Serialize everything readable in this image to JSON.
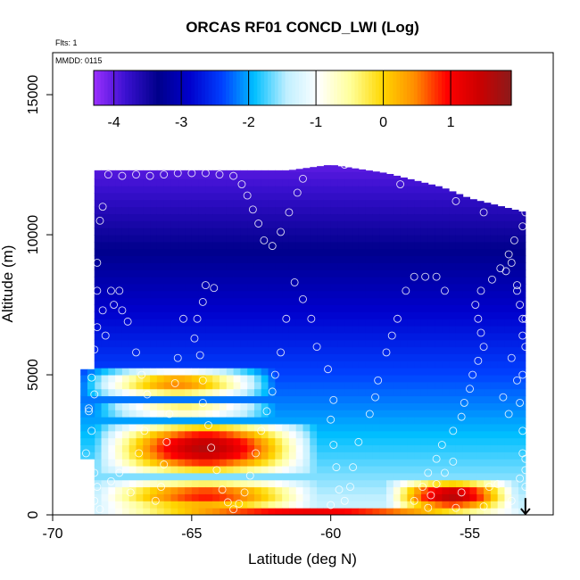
{
  "header": {
    "title": "ORCAS RF01 CONCD_LWI (Log)",
    "flts": "Flts: 1",
    "mmdd": "MMDD: 0115"
  },
  "chart_data": {
    "type": "heatmap",
    "title": "ORCAS RF01 CONCD_LWI (Log)",
    "xlabel": "Latitude (deg N)",
    "ylabel": "Altitude (m)",
    "xlim": [
      -70,
      -52
    ],
    "ylim": [
      0,
      16500
    ],
    "x_ticks": [
      -70,
      -65,
      -60,
      -55
    ],
    "x_tick_labels": [
      "-70",
      "-65",
      "-60",
      "-55"
    ],
    "y_ticks": [
      0,
      5000,
      10000,
      15000
    ],
    "y_tick_labels": [
      "0",
      "5000",
      "10000",
      "15000"
    ],
    "colorbar": {
      "range": [
        -4.3,
        1.9
      ],
      "ticks": [
        -4,
        -3,
        -2,
        -1,
        0,
        1
      ],
      "tick_labels": [
        "-4",
        "-3",
        "-2",
        "-1",
        "0",
        "1"
      ],
      "placement": "top",
      "colors": [
        "#9b30ff",
        "#3a10d0",
        "#00008b",
        "#0000cd",
        "#0040ff",
        "#00bfff",
        "#bfefff",
        "#ffffff",
        "#ffff99",
        "#ffd700",
        "#ff8c00",
        "#ff0000",
        "#cc0000",
        "#8b1a1a"
      ]
    },
    "coverage": [
      {
        "lat_min": -68.5,
        "lat_max": -53.0,
        "alt_min": 0,
        "alt_max": 12300
      },
      {
        "lat_min": -69.0,
        "lat_max": -68.5,
        "alt_min": 2000,
        "alt_max": 5200
      }
    ],
    "top_edge": [
      {
        "lat": -68.5,
        "alt": 12300
      },
      {
        "lat": -61.5,
        "alt": 12300
      },
      {
        "lat": -60.0,
        "alt": 12500
      },
      {
        "lat": -58.0,
        "alt": 12200
      },
      {
        "lat": -56.0,
        "alt": 11700
      },
      {
        "lat": -55.0,
        "alt": 11300
      },
      {
        "lat": -53.0,
        "alt": 10800
      }
    ],
    "high_value_layers": [
      {
        "name": "layer-4800",
        "lat_min": -69.0,
        "lat_max": -62.0,
        "alt_min": 4200,
        "alt_max": 5200,
        "peak": 0.5
      },
      {
        "name": "layer-3500",
        "lat_min": -68.5,
        "lat_max": -62.0,
        "alt_min": 3500,
        "alt_max": 4100,
        "peak": -0.3
      },
      {
        "name": "core-2400",
        "lat_min": -68.5,
        "lat_max": -60.5,
        "alt_min": 1500,
        "alt_max": 3300,
        "peak": 1.6
      },
      {
        "name": "low-600",
        "lat_min": -68.5,
        "lat_max": -60.5,
        "alt_min": 200,
        "alt_max": 1200,
        "peak": 0.9
      },
      {
        "name": "south-600",
        "lat_min": -58.0,
        "lat_max": -53.3,
        "alt_min": 200,
        "alt_max": 1200,
        "peak": 1.6
      },
      {
        "name": "surface",
        "lat_min": -68.5,
        "lat_max": -53.0,
        "alt_min": 0,
        "alt_max": 200,
        "peak": 1.2
      }
    ],
    "flight_track": [
      {
        "lat": -68.0,
        "alt": 12150
      },
      {
        "lat": -67.5,
        "alt": 12100
      },
      {
        "lat": -67.0,
        "alt": 12150
      },
      {
        "lat": -66.5,
        "alt": 12100
      },
      {
        "lat": -66.0,
        "alt": 12150
      },
      {
        "lat": -65.5,
        "alt": 12200
      },
      {
        "lat": -65.0,
        "alt": 12200
      },
      {
        "lat": -64.5,
        "alt": 12200
      },
      {
        "lat": -64.0,
        "alt": 12150
      },
      {
        "lat": -63.5,
        "alt": 12100
      },
      {
        "lat": -63.2,
        "alt": 11800
      },
      {
        "lat": -63.0,
        "alt": 11400
      },
      {
        "lat": -62.8,
        "alt": 10900
      },
      {
        "lat": -62.6,
        "alt": 10400
      },
      {
        "lat": -62.4,
        "alt": 9800
      },
      {
        "lat": -62.1,
        "alt": 9600
      },
      {
        "lat": -61.8,
        "alt": 10100
      },
      {
        "lat": -61.5,
        "alt": 10800
      },
      {
        "lat": -61.2,
        "alt": 11500
      },
      {
        "lat": -61.0,
        "alt": 12000
      },
      {
        "lat": -59.5,
        "alt": 12500
      },
      {
        "lat": -57.5,
        "alt": 11800
      },
      {
        "lat": -55.5,
        "alt": 11200
      },
      {
        "lat": -54.5,
        "alt": 10800
      },
      {
        "lat": -53.0,
        "alt": 10800
      },
      {
        "lat": -53.1,
        "alt": 10300
      },
      {
        "lat": -53.4,
        "alt": 9800
      },
      {
        "lat": -53.6,
        "alt": 9300
      },
      {
        "lat": -53.9,
        "alt": 8800
      },
      {
        "lat": -54.2,
        "alt": 8400
      },
      {
        "lat": -54.6,
        "alt": 8000
      },
      {
        "lat": -54.8,
        "alt": 7500
      },
      {
        "lat": -54.7,
        "alt": 7000
      },
      {
        "lat": -54.6,
        "alt": 6500
      },
      {
        "lat": -54.5,
        "alt": 6000
      },
      {
        "lat": -54.7,
        "alt": 5500
      },
      {
        "lat": -54.9,
        "alt": 5000
      },
      {
        "lat": -55.0,
        "alt": 4500
      },
      {
        "lat": -55.2,
        "alt": 4000
      },
      {
        "lat": -55.3,
        "alt": 3500
      },
      {
        "lat": -55.6,
        "alt": 3000
      },
      {
        "lat": -56.0,
        "alt": 2500
      },
      {
        "lat": -56.2,
        "alt": 2000
      },
      {
        "lat": -56.5,
        "alt": 1500
      },
      {
        "lat": -56.7,
        "alt": 1000
      },
      {
        "lat": -57.0,
        "alt": 500
      },
      {
        "lat": -56.5,
        "alt": 250
      },
      {
        "lat": -55.5,
        "alt": 250
      },
      {
        "lat": -54.5,
        "alt": 300
      },
      {
        "lat": -53.5,
        "alt": 500
      },
      {
        "lat": -53.0,
        "alt": 1000
      },
      {
        "lat": -53.0,
        "alt": 2000
      },
      {
        "lat": -53.1,
        "alt": 3000
      },
      {
        "lat": -53.2,
        "alt": 4000
      },
      {
        "lat": -53.1,
        "alt": 5000
      },
      {
        "lat": -53.0,
        "alt": 6000
      },
      {
        "lat": -53.1,
        "alt": 7000
      },
      {
        "lat": -53.2,
        "alt": 7500
      },
      {
        "lat": -53.3,
        "alt": 8000
      },
      {
        "lat": -57.0,
        "alt": 8500
      },
      {
        "lat": -56.6,
        "alt": 8500
      },
      {
        "lat": -56.2,
        "alt": 8500
      },
      {
        "lat": -55.9,
        "alt": 8000
      },
      {
        "lat": -57.3,
        "alt": 8000
      },
      {
        "lat": -57.6,
        "alt": 7000
      },
      {
        "lat": -57.8,
        "alt": 6400
      },
      {
        "lat": -58.0,
        "alt": 5800
      },
      {
        "lat": -58.3,
        "alt": 4800
      },
      {
        "lat": -58.4,
        "alt": 4200
      },
      {
        "lat": -58.6,
        "alt": 3600
      },
      {
        "lat": -59.0,
        "alt": 2600
      },
      {
        "lat": -59.2,
        "alt": 1700
      },
      {
        "lat": -59.3,
        "alt": 1000
      },
      {
        "lat": -59.5,
        "alt": 500
      },
      {
        "lat": -60.0,
        "alt": 350
      },
      {
        "lat": -59.7,
        "alt": 900
      },
      {
        "lat": -59.8,
        "alt": 1700
      },
      {
        "lat": -59.9,
        "alt": 2500
      },
      {
        "lat": -60.0,
        "alt": 3400
      },
      {
        "lat": -59.9,
        "alt": 4100
      },
      {
        "lat": -60.1,
        "alt": 5200
      },
      {
        "lat": -60.5,
        "alt": 6000
      },
      {
        "lat": -60.7,
        "alt": 7000
      },
      {
        "lat": -61.0,
        "alt": 7700
      },
      {
        "lat": -61.3,
        "alt": 8300
      },
      {
        "lat": -61.6,
        "alt": 7000
      },
      {
        "lat": -61.8,
        "alt": 5800
      },
      {
        "lat": -62.0,
        "alt": 5000
      },
      {
        "lat": -62.1,
        "alt": 4400
      },
      {
        "lat": -62.3,
        "alt": 3700
      },
      {
        "lat": -62.5,
        "alt": 3000
      },
      {
        "lat": -62.7,
        "alt": 2200
      },
      {
        "lat": -62.9,
        "alt": 1400
      },
      {
        "lat": -63.1,
        "alt": 800
      },
      {
        "lat": -63.3,
        "alt": 400
      },
      {
        "lat": -63.5,
        "alt": 200
      },
      {
        "lat": -63.7,
        "alt": 450
      },
      {
        "lat": -63.9,
        "alt": 900
      },
      {
        "lat": -64.1,
        "alt": 1600
      },
      {
        "lat": -64.3,
        "alt": 2400
      },
      {
        "lat": -64.4,
        "alt": 3200
      },
      {
        "lat": -64.6,
        "alt": 4000
      },
      {
        "lat": -64.6,
        "alt": 4800
      },
      {
        "lat": -64.7,
        "alt": 5700
      },
      {
        "lat": -64.9,
        "alt": 6300
      },
      {
        "lat": -64.8,
        "alt": 7000
      },
      {
        "lat": -64.6,
        "alt": 7600
      },
      {
        "lat": -64.5,
        "alt": 8200
      },
      {
        "lat": -64.2,
        "alt": 8100
      },
      {
        "lat": -65.3,
        "alt": 7000
      },
      {
        "lat": -65.5,
        "alt": 5600
      },
      {
        "lat": -65.6,
        "alt": 4700
      },
      {
        "lat": -65.8,
        "alt": 3600
      },
      {
        "lat": -65.9,
        "alt": 2600
      },
      {
        "lat": -66.0,
        "alt": 1800
      },
      {
        "lat": -66.1,
        "alt": 1000
      },
      {
        "lat": -66.3,
        "alt": 500
      },
      {
        "lat": -66.6,
        "alt": 4300
      },
      {
        "lat": -66.8,
        "alt": 5000
      },
      {
        "lat": -67.0,
        "alt": 5800
      },
      {
        "lat": -67.3,
        "alt": 6900
      },
      {
        "lat": -67.5,
        "alt": 7300
      },
      {
        "lat": -67.8,
        "alt": 7500
      },
      {
        "lat": -67.9,
        "alt": 8000
      },
      {
        "lat": -67.6,
        "alt": 8000
      },
      {
        "lat": -68.1,
        "alt": 6400
      },
      {
        "lat": -68.5,
        "alt": 5900
      },
      {
        "lat": -68.4,
        "alt": 6700
      },
      {
        "lat": -68.2,
        "alt": 7300
      },
      {
        "lat": -68.4,
        "alt": 8000
      },
      {
        "lat": -68.4,
        "alt": 9000
      },
      {
        "lat": -68.2,
        "alt": 11000
      },
      {
        "lat": -68.3,
        "alt": 10500
      },
      {
        "lat": -68.6,
        "alt": 4900
      },
      {
        "lat": -68.5,
        "alt": 4300
      },
      {
        "lat": -68.7,
        "alt": 3800
      },
      {
        "lat": -68.6,
        "alt": 3000
      },
      {
        "lat": -68.8,
        "alt": 2200
      },
      {
        "lat": -68.5,
        "alt": 1500
      },
      {
        "lat": -68.4,
        "alt": 1000
      },
      {
        "lat": -68.5,
        "alt": 500
      },
      {
        "lat": -68.3,
        "alt": 200
      },
      {
        "lat": -68.7,
        "alt": 3700
      },
      {
        "lat": -67.9,
        "alt": 1200
      },
      {
        "lat": -67.6,
        "alt": 1500
      },
      {
        "lat": -67.2,
        "alt": 800
      },
      {
        "lat": -66.9,
        "alt": 2200
      },
      {
        "lat": -66.7,
        "alt": 3000
      },
      {
        "lat": -53.1,
        "alt": 2200
      },
      {
        "lat": -53.0,
        "alt": 1600
      },
      {
        "lat": -53.2,
        "alt": 1300
      },
      {
        "lat": -53.6,
        "alt": 3600
      },
      {
        "lat": -53.8,
        "alt": 4200
      },
      {
        "lat": -53.3,
        "alt": 4800
      },
      {
        "lat": -53.5,
        "alt": 5600
      },
      {
        "lat": -53.1,
        "alt": 6400
      },
      {
        "lat": -53.0,
        "alt": 7000
      },
      {
        "lat": -53.3,
        "alt": 8200
      },
      {
        "lat": -53.7,
        "alt": 8700
      },
      {
        "lat": -53.5,
        "alt": 9000
      },
      {
        "lat": -55.6,
        "alt": 1900
      },
      {
        "lat": -55.9,
        "alt": 1500
      },
      {
        "lat": -56.2,
        "alt": 1100
      },
      {
        "lat": -56.4,
        "alt": 700
      },
      {
        "lat": -55.3,
        "alt": 800
      },
      {
        "lat": -54.3,
        "alt": 1000
      },
      {
        "lat": -54.0,
        "alt": 1100
      }
    ],
    "arrow_marker": {
      "lat": -53.0,
      "alt": 600,
      "direction": "down"
    }
  }
}
